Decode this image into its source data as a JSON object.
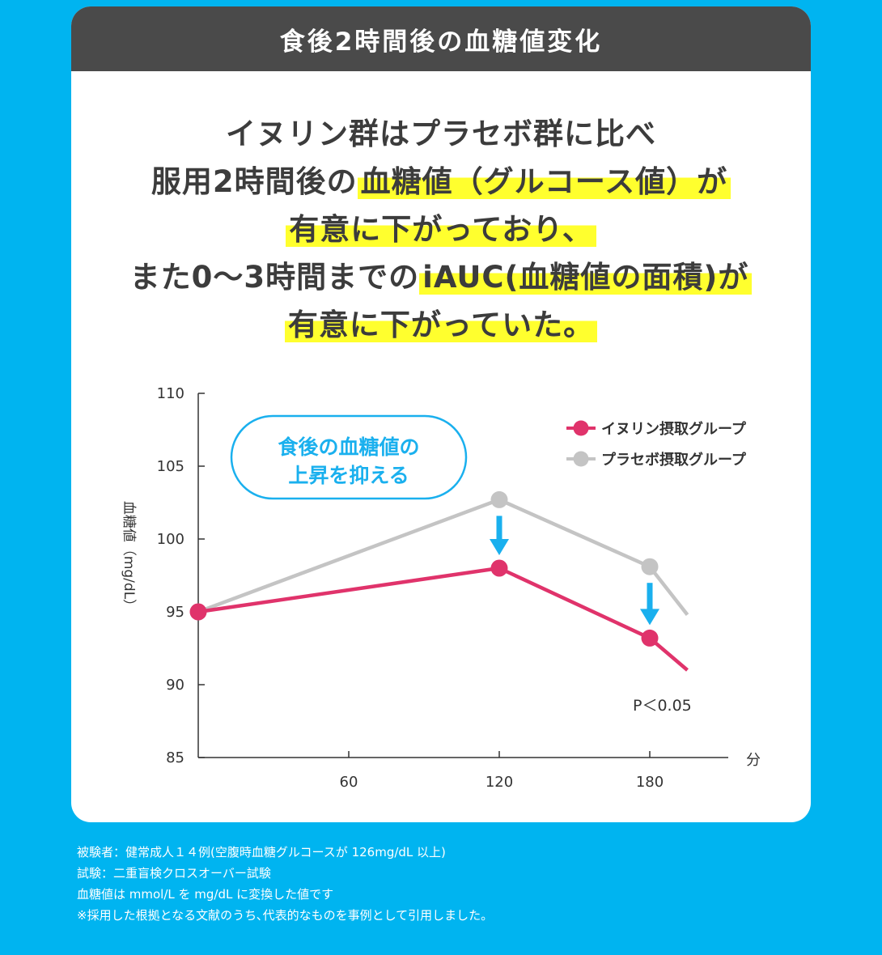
{
  "header": {
    "title": "食後2時間後の血糖値変化"
  },
  "headline": {
    "line1": "イヌリン群はプラセボ群に比べ",
    "line2_pre": "服用2時間後の",
    "line2_hl": "血糖値（グルコース値）が",
    "line3_hl": "有意に下がっており、",
    "line4_pre": "また0～3時間までの",
    "line4_hl": "iAUC(血糖値の面積)が",
    "line5_hl": "有意に下がっていた。"
  },
  "colors": {
    "inulin": "#e0336b",
    "placebo": "#c4c4c4",
    "accent": "#1ab0ee",
    "highlight": "#ffff2e"
  },
  "chart_data": {
    "type": "line",
    "ylabel": "血糖値（mg/dL）",
    "xunit": "分",
    "ylim": [
      85,
      110
    ],
    "yticks": [
      85,
      90,
      95,
      100,
      105,
      110
    ],
    "xticks": [
      60,
      120,
      180
    ],
    "series": [
      {
        "name": "イヌリン摂取グループ",
        "color": "#e0336b",
        "x": [
          0,
          120,
          180
        ],
        "y": [
          95,
          98,
          93.2
        ],
        "tail": {
          "x": 195,
          "y": 91
        }
      },
      {
        "name": "プラセボ摂取グループ",
        "color": "#c4c4c4",
        "x": [
          0,
          120,
          180
        ],
        "y": [
          95,
          102.7,
          98.1
        ],
        "tail": {
          "x": 195,
          "y": 94.8
        }
      }
    ],
    "annotations": {
      "bubble_line1": "食後の血糖値の",
      "bubble_line2": "上昇を抑える",
      "pvalue": "P＜0.05"
    }
  },
  "notes": [
    "被験者：健常成人１４例(空腹時血糖グルコースが 126mg/dL 以上)",
    "試験：二重盲検クロスオーバー試験",
    "血糖値は mmol/L を mg/dL に変換した値です",
    "※採用した根拠となる文献のうち､代表的なものを事例として引用しました。"
  ]
}
